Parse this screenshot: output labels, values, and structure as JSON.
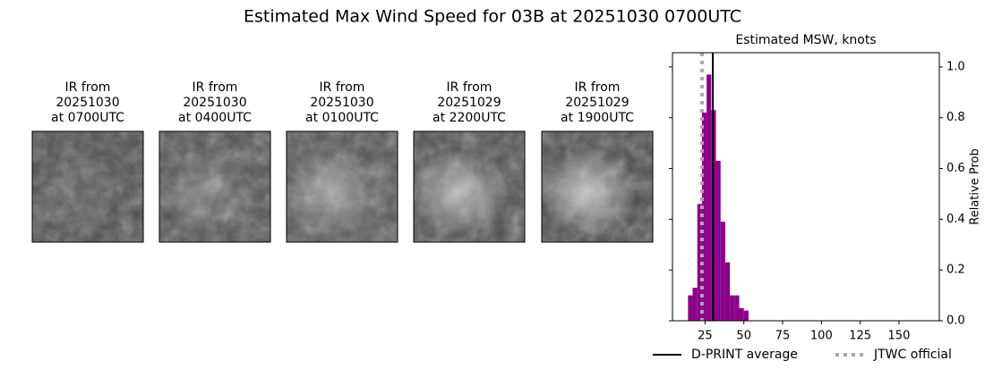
{
  "title": "Estimated Max Wind Speed for 03B at 20251030 0700UTC",
  "panels": [
    {
      "lines": [
        "IR from",
        "20251030",
        "at 0700UTC"
      ]
    },
    {
      "lines": [
        "IR from",
        "20251030",
        "at 0400UTC"
      ]
    },
    {
      "lines": [
        "IR from",
        "20251030",
        "at 0100UTC"
      ]
    },
    {
      "lines": [
        "IR from",
        "20251029",
        "at 2200UTC"
      ]
    },
    {
      "lines": [
        "IR from",
        "20251029",
        "at 1900UTC"
      ]
    }
  ],
  "chart_data": {
    "type": "histogram",
    "title": "Estimated MSW, knots",
    "ylabel": "Relative Prob",
    "bins": [
      14,
      17,
      20,
      23,
      26,
      29,
      32,
      35,
      38,
      41,
      44,
      47,
      50,
      53
    ],
    "values": [
      0.1,
      0.13,
      0.46,
      0.82,
      0.97,
      0.83,
      0.63,
      0.39,
      0.23,
      0.1,
      0.1,
      0.05,
      0.04
    ],
    "color": "#8b008b",
    "xlim": [
      4,
      176
    ],
    "xticks": [
      25,
      50,
      75,
      100,
      125,
      150
    ],
    "ylim": [
      0,
      1.056
    ],
    "yticks": [
      {
        "value": 0,
        "label": "0.0"
      },
      0.2,
      0.4,
      0.6,
      0.8,
      {
        "value": 1,
        "label": "1.0"
      }
    ],
    "lines": [
      {
        "name": "D-PRINT average",
        "value": 30,
        "color": "#000000",
        "dash": false
      },
      {
        "name": "JTWC official",
        "value": 23,
        "color": "#aaaaaa",
        "dash": true
      }
    ],
    "legend": "bottom"
  }
}
